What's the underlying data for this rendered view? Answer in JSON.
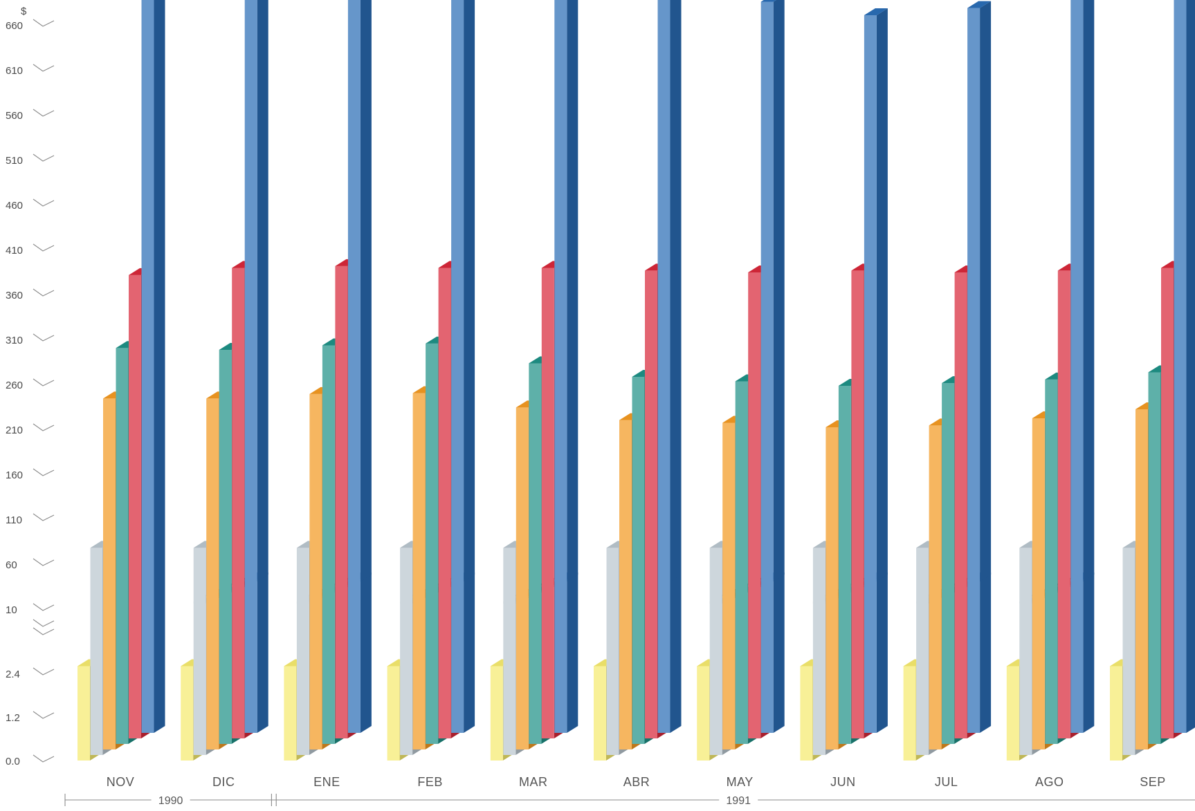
{
  "chart_data": {
    "type": "bar",
    "title": "",
    "currency_symbol": "$",
    "xlabel": "",
    "ylabel": "",
    "grid": false,
    "legend": "none",
    "axis_break": true,
    "upper_scale": {
      "min": 10,
      "max": 710,
      "ticks": [
        10,
        60,
        110,
        160,
        210,
        260,
        310,
        360,
        410,
        460,
        510,
        560,
        610,
        660
      ]
    },
    "lower_scale": {
      "min": 0.0,
      "max": 3.6,
      "ticks": [
        0.0,
        1.2,
        2.4
      ]
    },
    "y_tick_labels": [
      "660",
      "610",
      "560",
      "510",
      "460",
      "410",
      "360",
      "310",
      "260",
      "210",
      "160",
      "110",
      "60",
      "10",
      "2.4",
      "1.2",
      "0.0"
    ],
    "categories": [
      "NOV",
      "DIC",
      "ENE",
      "FEB",
      "MAR",
      "ABR",
      "MAY",
      "JUN",
      "JUL",
      "AGO",
      "SEP"
    ],
    "year_groups": [
      {
        "label": "1990",
        "first": 0,
        "last": 1
      },
      {
        "label": "1991",
        "first": 2,
        "last": 10
      }
    ],
    "series": [
      {
        "color": "#f5ea6e",
        "values": [
          2.6,
          2.6,
          2.6,
          2.6,
          2.6,
          2.6,
          2.6,
          2.6,
          2.6,
          2.6,
          2.6
        ]
      },
      {
        "color": "#b9c6ce",
        "values": [
          72,
          72,
          72,
          72,
          72,
          72,
          72,
          72,
          72,
          72,
          72
        ]
      },
      {
        "color": "#f39a22",
        "values": [
          232,
          232,
          237,
          238,
          222,
          208,
          205,
          200,
          202,
          210,
          220
        ]
      },
      {
        "color": "#1f9187",
        "values": [
          282,
          280,
          285,
          287,
          265,
          250,
          245,
          240,
          243,
          247,
          255
        ]
      },
      {
        "color": "#d8283a",
        "values": [
          357,
          365,
          367,
          365,
          365,
          362,
          360,
          362,
          360,
          362,
          365
        ]
      },
      {
        "color": "#2a6db6",
        "values": [
          692,
          692,
          700,
          705,
          675,
          665,
          655,
          640,
          648,
          665,
          685
        ]
      }
    ]
  }
}
